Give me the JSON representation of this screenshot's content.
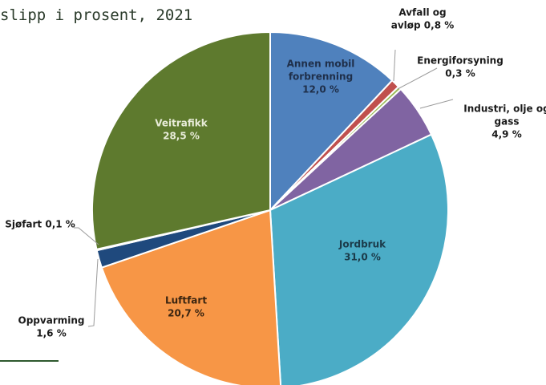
{
  "chart_data": {
    "type": "pie",
    "title": "slipp i prosent, 2021",
    "slices": [
      {
        "label": [
          "Annen mobil",
          "forbrenning"
        ],
        "value_label": "12,0 %",
        "value": 12.0,
        "color": "#4f81bd"
      },
      {
        "label": [
          "Avfall og",
          "avløp 0,8 %"
        ],
        "value_label": "",
        "value": 0.8,
        "color": "#c0504d"
      },
      {
        "label": [
          "Energiforsyning"
        ],
        "value_label": "0,3 %",
        "value": 0.3,
        "color": "#9bbb59"
      },
      {
        "label": [
          "Industri, olje og",
          "gass"
        ],
        "value_label": "4,9 %",
        "value": 4.9,
        "color": "#8064a2"
      },
      {
        "label": [
          "Jordbruk"
        ],
        "value_label": "31,0 %",
        "value": 31.0,
        "color": "#4bacc6"
      },
      {
        "label": [
          "Luftfart"
        ],
        "value_label": "20,7 %",
        "value": 20.7,
        "color": "#f79646"
      },
      {
        "label": [
          "Oppvarming"
        ],
        "value_label": "1,6 %",
        "value": 1.6,
        "color": "#1f497d"
      },
      {
        "label": [
          "Sjøfart 0,1 %"
        ],
        "value_label": "",
        "value": 0.1,
        "color": "#d9d9d9"
      },
      {
        "label": [
          "Veitrafikk"
        ],
        "value_label": "28,5 %",
        "value": 28.5,
        "color": "#5e7a2e"
      }
    ]
  }
}
